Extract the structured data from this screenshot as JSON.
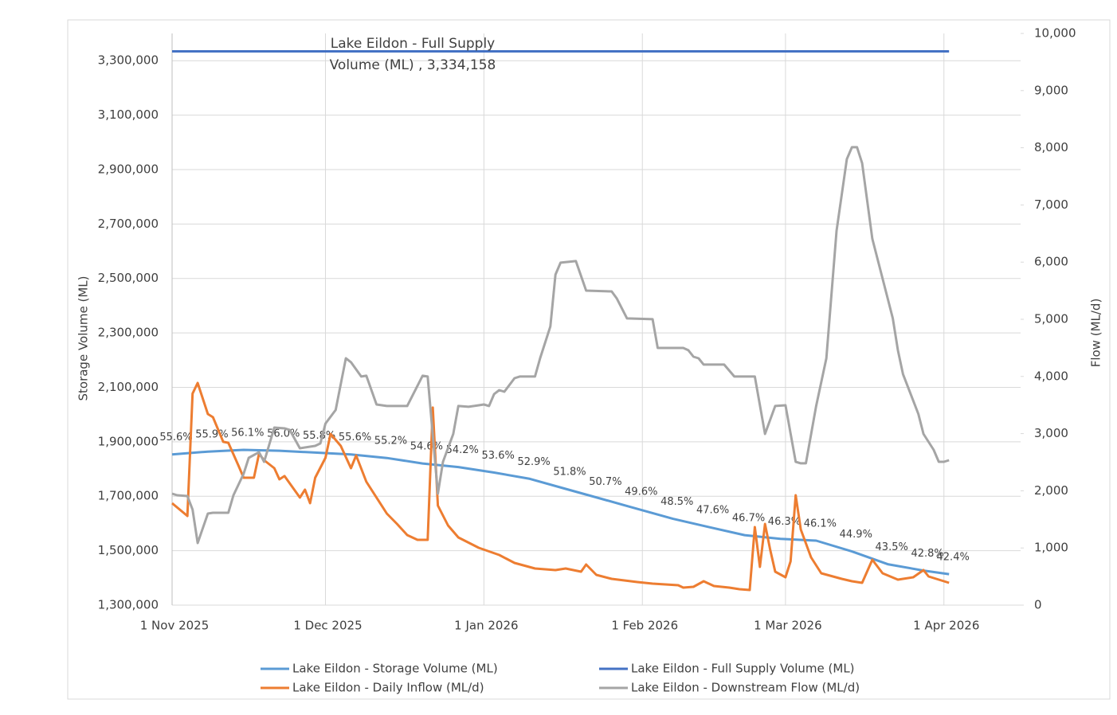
{
  "chart_data": {
    "type": "line",
    "ylabel": "Storage Volume (ML)",
    "y2label": "Flow (ML/d)",
    "annotations": [
      "Lake Eildon - Full Supply",
      "Volume (ML) ,  3,334,158"
    ],
    "xlim": [
      "2025-11-01",
      "2026-04-16"
    ],
    "xticks": [
      {
        "value": "2025-11-01",
        "label": "1 Nov 2025"
      },
      {
        "value": "2025-12-01",
        "label": "1 Dec 2025"
      },
      {
        "value": "2026-01-01",
        "label": "1 Jan 2026"
      },
      {
        "value": "2026-02-01",
        "label": "1 Feb 2026"
      },
      {
        "value": "2026-03-01",
        "label": "1 Mar 2026"
      },
      {
        "value": "2026-04-01",
        "label": "1 Apr 2026"
      }
    ],
    "ylim": [
      1300000,
      3400000
    ],
    "yticks": [
      {
        "value": 1300000,
        "label": "1,300,000"
      },
      {
        "value": 1500000,
        "label": "1,500,000"
      },
      {
        "value": 1700000,
        "label": "1,700,000"
      },
      {
        "value": 1900000,
        "label": "1,900,000"
      },
      {
        "value": 2100000,
        "label": "2,100,000"
      },
      {
        "value": 2300000,
        "label": "2,300,000"
      },
      {
        "value": 2500000,
        "label": "2,500,000"
      },
      {
        "value": 2700000,
        "label": "2,700,000"
      },
      {
        "value": 2900000,
        "label": "2,900,000"
      },
      {
        "value": 3100000,
        "label": "3,100,000"
      },
      {
        "value": 3300000,
        "label": "3,300,000"
      }
    ],
    "y2lim": [
      0,
      10000
    ],
    "y2ticks": [
      0,
      {
        "value": 1000,
        "label": "1,000"
      },
      {
        "value": 2000,
        "label": "2,000"
      },
      {
        "value": 3000,
        "label": "3,000"
      },
      {
        "value": 4000,
        "label": "4,000"
      },
      {
        "value": 5000,
        "label": "5,000"
      },
      {
        "value": 6000,
        "label": "6,000"
      },
      {
        "value": 7000,
        "label": "7,000"
      },
      {
        "value": 8000,
        "label": "8,000"
      },
      {
        "value": 9000,
        "label": "9,000"
      },
      {
        "value": 10000,
        "label": "10,000"
      }
    ],
    "grid": true,
    "legend": "bottom",
    "series": [
      {
        "name": "Lake Eildon - Storage Volume (ML)",
        "color": "#5b9bd5",
        "x": [
          "2025-11-01",
          "2025-11-08",
          "2025-11-15",
          "2025-11-22",
          "2025-11-29",
          "2025-12-06",
          "2025-12-13",
          "2025-12-20",
          "2025-12-27",
          "2026-01-03",
          "2026-01-10",
          "2026-01-17",
          "2026-01-24",
          "2026-01-31",
          "2026-02-07",
          "2026-02-14",
          "2026-02-21",
          "2026-02-28",
          "2026-03-07",
          "2026-03-14",
          "2026-03-21",
          "2026-03-28",
          "2026-04-02"
        ],
        "values": [
          1853792,
          1863794,
          1870463,
          1867128,
          1860460,
          1853792,
          1840455,
          1820450,
          1807114,
          1787109,
          1763770,
          1727094,
          1690418,
          1653742,
          1617067,
          1587059,
          1557052,
          1543715,
          1537047,
          1497037,
          1450359,
          1427020,
          1413683
        ],
        "value_labels": [
          "55.6%",
          "55.9%",
          "56.1%",
          "56.0%",
          "55.8%",
          "55.6%",
          "55.2%",
          "54.6%",
          "54.2%",
          "53.6%",
          "52.9%",
          "51.8%",
          "50.7%",
          "49.6%",
          "48.5%",
          "47.6%",
          "46.7%",
          "46.3%",
          "46.1%",
          "44.9%",
          "43.5%",
          "42.8%",
          "42.4%"
        ]
      },
      {
        "name": "Lake Eildon - Full Supply Volume (ML)",
        "color": "#4472c4",
        "x": [
          "2025-11-01",
          "2026-04-02"
        ],
        "values": [
          3334158,
          3334158
        ]
      },
      {
        "name": "Lake Eildon - Daily Inflow (ML/d)",
        "color": "#ed7d31",
        "axis": "y2",
        "x": [
          "2025-11-01",
          "2025-11-04",
          "2025-11-05",
          "2025-11-06",
          "2025-11-08",
          "2025-11-09",
          "2025-11-11",
          "2025-11-12",
          "2025-11-14",
          "2025-11-15",
          "2025-11-17",
          "2025-11-18",
          "2025-11-19",
          "2025-11-21",
          "2025-11-22",
          "2025-11-23",
          "2025-11-26",
          "2025-11-27",
          "2025-11-28",
          "2025-11-29",
          "2025-12-01",
          "2025-12-02",
          "2025-12-04",
          "2025-12-06",
          "2025-12-07",
          "2025-12-09",
          "2025-12-11",
          "2025-12-13",
          "2025-12-15",
          "2025-12-17",
          "2025-12-19",
          "2025-12-21",
          "2025-12-22",
          "2025-12-23",
          "2025-12-25",
          "2025-12-27",
          "2025-12-31",
          "2026-01-04",
          "2026-01-07",
          "2026-01-11",
          "2026-01-15",
          "2026-01-17",
          "2026-01-20",
          "2026-01-21",
          "2026-01-23",
          "2026-01-26",
          "2026-01-31",
          "2026-02-03",
          "2026-02-08",
          "2026-02-09",
          "2026-02-11",
          "2026-02-13",
          "2026-02-15",
          "2026-02-18",
          "2026-02-20",
          "2026-02-22",
          "2026-02-23",
          "2026-02-24",
          "2026-02-25",
          "2026-02-26",
          "2026-02-27",
          "2026-03-01",
          "2026-03-02",
          "2026-03-03",
          "2026-03-04",
          "2026-03-06",
          "2026-03-08",
          "2026-03-12",
          "2026-03-14",
          "2026-03-16",
          "2026-03-18",
          "2026-03-20",
          "2026-03-23",
          "2026-03-26",
          "2026-03-28",
          "2026-03-29",
          "2026-04-01",
          "2026-04-02"
        ],
        "values": [
          1783,
          1560,
          3700,
          3886,
          3343,
          3287,
          2856,
          2840,
          2438,
          2229,
          2229,
          2647,
          2535,
          2396,
          2201,
          2257,
          1881,
          2020,
          1783,
          2229,
          2577,
          2995,
          2786,
          2396,
          2619,
          2159,
          1881,
          1602,
          1421,
          1226,
          1142,
          1142,
          3455,
          1741,
          1393,
          1184,
          1003,
          877,
          738,
          641,
          613,
          641,
          585,
          710,
          529,
          460,
          404,
          376,
          348,
          306,
          320,
          418,
          334,
          306,
          279,
          265,
          1365,
          669,
          1421,
          975,
          585,
          488,
          766,
          1922,
          1323,
          836,
          557,
          460,
          418,
          390,
          794,
          557,
          446,
          488,
          613,
          501,
          418,
          390
        ]
      },
      {
        "name": "Lake Eildon - Downstream Flow (ML/d)",
        "color": "#a5a5a5",
        "axis": "y2",
        "x": [
          "2025-11-01",
          "2025-11-02",
          "2025-11-04",
          "2025-11-05",
          "2025-11-06",
          "2025-11-08",
          "2025-11-09",
          "2025-11-12",
          "2025-11-13",
          "2025-11-15",
          "2025-11-16",
          "2025-11-18",
          "2025-11-19",
          "2025-11-21",
          "2025-11-23",
          "2025-11-24",
          "2025-11-26",
          "2025-11-29",
          "2025-11-30",
          "2025-12-01",
          "2025-12-03",
          "2025-12-05",
          "2025-12-06",
          "2025-12-08",
          "2025-12-09",
          "2025-12-11",
          "2025-12-13",
          "2025-12-17",
          "2025-12-20",
          "2025-12-21",
          "2025-12-23",
          "2025-12-24",
          "2025-12-26",
          "2025-12-27",
          "2025-12-29",
          "2025-12-31",
          "2026-01-01",
          "2026-01-02",
          "2026-01-03",
          "2026-01-04",
          "2026-01-05",
          "2026-01-07",
          "2026-01-08",
          "2026-01-11",
          "2026-01-12",
          "2026-01-14",
          "2026-01-15",
          "2026-01-16",
          "2026-01-19",
          "2026-01-21",
          "2026-01-26",
          "2026-01-27",
          "2026-01-29",
          "2026-02-03",
          "2026-02-04",
          "2026-02-09",
          "2026-02-10",
          "2026-02-11",
          "2026-02-12",
          "2026-02-13",
          "2026-02-17",
          "2026-02-19",
          "2026-02-23",
          "2026-02-25",
          "2026-02-27",
          "2026-03-01",
          "2026-03-03",
          "2026-03-04",
          "2026-03-05",
          "2026-03-07",
          "2026-03-09",
          "2026-03-11",
          "2026-03-13",
          "2026-03-14",
          "2026-03-15",
          "2026-03-16",
          "2026-03-18",
          "2026-03-21",
          "2026-03-22",
          "2026-03-23",
          "2026-03-24",
          "2026-03-27",
          "2026-03-28",
          "2026-03-30",
          "2026-03-31",
          "2026-04-01",
          "2026-04-02"
        ],
        "values": [
          1950,
          1922,
          1908,
          1672,
          1087,
          1602,
          1616,
          1616,
          1922,
          2298,
          2577,
          2675,
          2507,
          3106,
          3092,
          3065,
          2744,
          2786,
          2828,
          3176,
          3413,
          4318,
          4249,
          3998,
          4012,
          3510,
          3483,
          3483,
          4012,
          3998,
          1950,
          2507,
          2995,
          3483,
          3469,
          3496,
          3510,
          3483,
          3692,
          3761,
          3733,
          3970,
          3998,
          3998,
          4318,
          4876,
          5781,
          5990,
          6018,
          5502,
          5488,
          5363,
          5015,
          5001,
          4499,
          4499,
          4458,
          4346,
          4318,
          4207,
          4207,
          3998,
          3998,
          2995,
          3483,
          3496,
          2507,
          2480,
          2480,
          3483,
          4318,
          6547,
          7801,
          8010,
          8010,
          7731,
          6408,
          5363,
          5015,
          4458,
          4040,
          3343,
          2995,
          2716,
          2507,
          2507,
          2535
        ]
      }
    ]
  }
}
